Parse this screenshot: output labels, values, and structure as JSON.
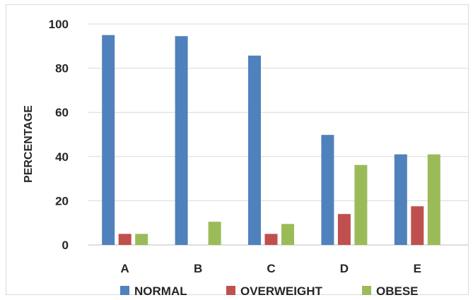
{
  "chart_data": {
    "type": "bar",
    "title": "",
    "xlabel": "",
    "ylabel": "PERCENTAGE",
    "categories": [
      "A",
      "B",
      "C",
      "D",
      "E"
    ],
    "ylim": [
      0,
      100
    ],
    "yticks": [
      0,
      20,
      40,
      60,
      80,
      100
    ],
    "grid": true,
    "legend_position": "bottom",
    "series": [
      {
        "name": "NORMAL",
        "color": "#4f81bd",
        "values": [
          95,
          94.5,
          85.7,
          49.8,
          41
        ]
      },
      {
        "name": "OVERWEIGHT",
        "color": "#c0504d",
        "values": [
          5,
          0,
          5,
          14,
          17.5
        ]
      },
      {
        "name": "OBESE",
        "color": "#9bbb59",
        "values": [
          5,
          10.5,
          9.5,
          36.2,
          41
        ]
      }
    ]
  }
}
